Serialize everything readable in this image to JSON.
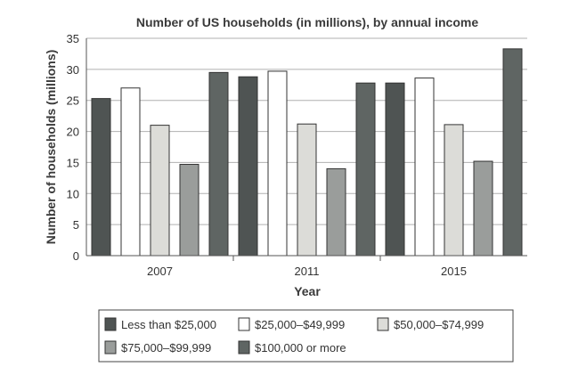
{
  "chart_data": {
    "type": "bar",
    "title": "Number of US households (in millions), by annual income",
    "xlabel": "Year",
    "ylabel": "Number of households (millions)",
    "categories": [
      "2007",
      "2011",
      "2015"
    ],
    "ylim": [
      0,
      35
    ],
    "yticks": [
      0,
      5,
      10,
      15,
      20,
      25,
      30,
      35
    ],
    "grid": true,
    "legend_position": "bottom",
    "series": [
      {
        "name": "Less than $25,000",
        "color": "#4f5453",
        "values": [
          25.3,
          28.8,
          27.8
        ]
      },
      {
        "name": "$25,000–$49,999",
        "color": "#ffffff",
        "values": [
          27.0,
          29.7,
          28.6
        ]
      },
      {
        "name": "$50,000–$74,999",
        "color": "#dcdcd8",
        "values": [
          21.0,
          21.2,
          21.1
        ]
      },
      {
        "name": "$75,000–$99,999",
        "color": "#9a9d9b",
        "values": [
          14.7,
          14.0,
          15.2
        ]
      },
      {
        "name": "$100,000 or more",
        "color": "#5f6563",
        "values": [
          29.5,
          27.8,
          33.3
        ]
      }
    ]
  }
}
